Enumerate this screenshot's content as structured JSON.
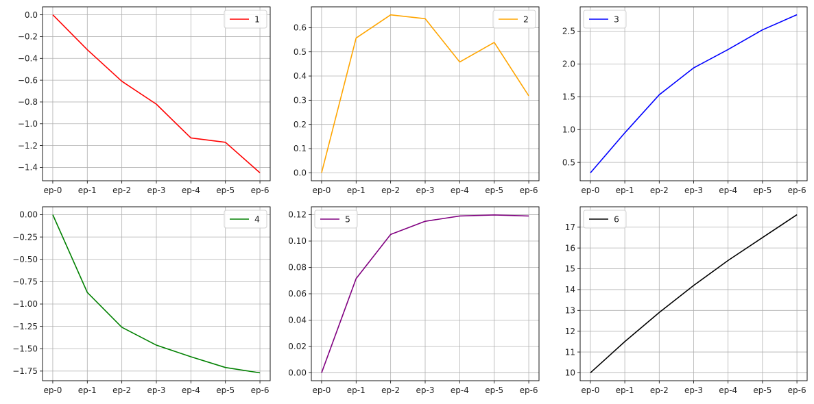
{
  "chart_data": [
    {
      "type": "line",
      "categories": [
        "ep-0",
        "ep-1",
        "ep-2",
        "ep-3",
        "ep-4",
        "ep-5",
        "ep-6"
      ],
      "series": [
        {
          "name": "1",
          "color": "#ff0000",
          "values": [
            0.0,
            -0.32,
            -0.61,
            -0.82,
            -1.13,
            -1.17,
            -1.45
          ]
        }
      ],
      "yticks": [
        0.0,
        -0.2,
        -0.4,
        -0.6,
        -0.8,
        -1.0,
        -1.2,
        -1.4
      ],
      "ytick_labels": [
        "0.0",
        "−0.2",
        "−0.4",
        "−0.6",
        "−0.8",
        "−1.0",
        "−1.2",
        "−1.4"
      ],
      "ylim": [
        -1.523,
        0.073
      ],
      "legend_loc": "upper right",
      "grid": true
    },
    {
      "type": "line",
      "categories": [
        "ep-0",
        "ep-1",
        "ep-2",
        "ep-3",
        "ep-4",
        "ep-5",
        "ep-6"
      ],
      "series": [
        {
          "name": "2",
          "color": "#ffa500",
          "values": [
            0.0,
            0.557,
            0.653,
            0.637,
            0.458,
            0.539,
            0.318
          ]
        }
      ],
      "yticks": [
        0.0,
        0.1,
        0.2,
        0.3,
        0.4,
        0.5,
        0.6
      ],
      "ytick_labels": [
        "0.0",
        "0.1",
        "0.2",
        "0.3",
        "0.4",
        "0.5",
        "0.6"
      ],
      "ylim": [
        -0.033,
        0.686
      ],
      "legend_loc": "upper right",
      "grid": true
    },
    {
      "type": "line",
      "categories": [
        "ep-0",
        "ep-1",
        "ep-2",
        "ep-3",
        "ep-4",
        "ep-5",
        "ep-6"
      ],
      "series": [
        {
          "name": "3",
          "color": "#0000ff",
          "values": [
            0.34,
            0.95,
            1.53,
            1.94,
            2.22,
            2.52,
            2.75
          ]
        }
      ],
      "yticks": [
        0.5,
        1.0,
        1.5,
        2.0,
        2.5
      ],
      "ytick_labels": [
        "0.5",
        "1.0",
        "1.5",
        "2.0",
        "2.5"
      ],
      "ylim": [
        0.22,
        2.87
      ],
      "legend_loc": "upper left",
      "grid": true
    },
    {
      "type": "line",
      "categories": [
        "ep-0",
        "ep-1",
        "ep-2",
        "ep-3",
        "ep-4",
        "ep-5",
        "ep-6"
      ],
      "series": [
        {
          "name": "4",
          "color": "#008000",
          "values": [
            0.0,
            -0.87,
            -1.26,
            -1.46,
            -1.59,
            -1.71,
            -1.77
          ]
        }
      ],
      "yticks": [
        0.0,
        -0.25,
        -0.5,
        -0.75,
        -1.0,
        -1.25,
        -1.5,
        -1.75
      ],
      "ytick_labels": [
        "0.00",
        "−0.25",
        "−0.50",
        "−0.75",
        "−1.00",
        "−1.25",
        "−1.50",
        "−1.75"
      ],
      "ylim": [
        -1.858,
        0.088
      ],
      "legend_loc": "upper right",
      "grid": true
    },
    {
      "type": "line",
      "categories": [
        "ep-0",
        "ep-1",
        "ep-2",
        "ep-3",
        "ep-4",
        "ep-5",
        "ep-6"
      ],
      "series": [
        {
          "name": "5",
          "color": "#800080",
          "values": [
            0.0,
            0.0715,
            0.105,
            0.115,
            0.119,
            0.1198,
            0.119
          ]
        }
      ],
      "yticks": [
        0.0,
        0.02,
        0.04,
        0.06,
        0.08,
        0.1,
        0.12
      ],
      "ytick_labels": [
        "0.00",
        "0.02",
        "0.04",
        "0.06",
        "0.08",
        "0.10",
        "0.12"
      ],
      "ylim": [
        -0.006,
        0.126
      ],
      "legend_loc": "upper left",
      "grid": true
    },
    {
      "type": "line",
      "categories": [
        "ep-0",
        "ep-1",
        "ep-2",
        "ep-3",
        "ep-4",
        "ep-5",
        "ep-6"
      ],
      "series": [
        {
          "name": "6",
          "color": "#000000",
          "values": [
            10.0,
            11.5,
            12.9,
            14.2,
            15.4,
            16.5,
            17.6
          ]
        }
      ],
      "yticks": [
        10,
        11,
        12,
        13,
        14,
        15,
        16,
        17
      ],
      "ytick_labels": [
        "10",
        "11",
        "12",
        "13",
        "14",
        "15",
        "16",
        "17"
      ],
      "ylim": [
        9.62,
        17.98
      ],
      "legend_loc": "upper left",
      "grid": true
    }
  ]
}
